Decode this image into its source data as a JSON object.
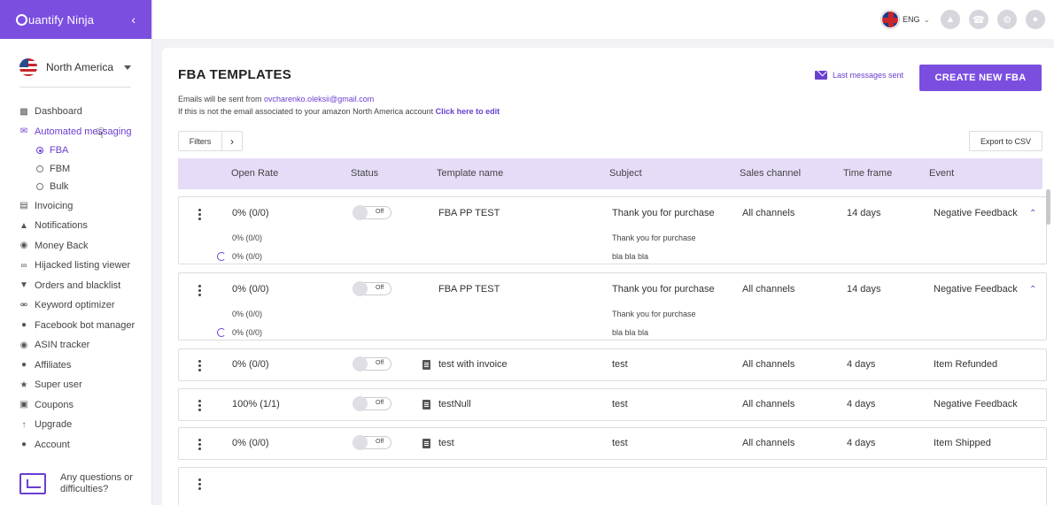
{
  "app": {
    "logo": "uantify Ninja"
  },
  "sidebar": {
    "region": "North America",
    "items": [
      {
        "label": "Dashboard",
        "icon": "bar-chart-icon"
      },
      {
        "label": "Automated messaging",
        "icon": "envelope-icon"
      },
      {
        "label": "Invoicing",
        "icon": "invoice-icon"
      },
      {
        "label": "Notifications",
        "icon": "bell-icon"
      },
      {
        "label": "Money Back",
        "icon": "dollar-icon"
      },
      {
        "label": "Hijacked listing viewer",
        "icon": "glasses-icon"
      },
      {
        "label": "Orders and blacklist",
        "icon": "cart-icon"
      },
      {
        "label": "Keyword optimizer",
        "icon": "key-icon"
      },
      {
        "label": "Facebook bot manager",
        "icon": "chat-icon"
      },
      {
        "label": "ASIN tracker",
        "icon": "tracker-icon"
      },
      {
        "label": "Affiliates",
        "icon": "users-icon"
      },
      {
        "label": "Super user",
        "icon": "star-icon"
      },
      {
        "label": "Coupons",
        "icon": "ticket-icon"
      },
      {
        "label": "Upgrade",
        "icon": "arrow-up-icon"
      },
      {
        "label": "Account",
        "icon": "person-icon"
      }
    ],
    "subitems": [
      {
        "label": "FBA"
      },
      {
        "label": "FBM"
      },
      {
        "label": "Bulk"
      }
    ],
    "help": "Any questions or difficulties?"
  },
  "topbar": {
    "lang": "ENG"
  },
  "page": {
    "title": "FBA TEMPLATES",
    "last_messages": "Last messages sent",
    "create_button": "CREATE NEW FBA",
    "email_prefix": "Emails will be sent from ",
    "email": "ovcharenko.oleksii@gmail.com",
    "email_note": "If this is not the email associated to your amazon North America account ",
    "email_link": "Click here to edit",
    "filters": "Filters",
    "export": "Export to CSV"
  },
  "table": {
    "headers": {
      "open_rate": "Open Rate",
      "status": "Status",
      "template_name": "Template name",
      "subject": "Subject",
      "sales_channel": "Sales channel",
      "time_frame": "Time frame",
      "event": "Event"
    },
    "rows": [
      {
        "open_rate": "0% (0/0)",
        "status": "Off",
        "name": "FBA PP TEST",
        "subject": "Thank you for purchase",
        "channel": "All channels",
        "time": "14 days",
        "event": "Negative Feedback",
        "sub1_rate": "0% (0/0)",
        "sub1_subject": "Thank you for purchase",
        "sub2_rate": "0% (0/0)",
        "sub2_subject": "bla bla bla"
      },
      {
        "open_rate": "0% (0/0)",
        "status": "Off",
        "name": "FBA PP TEST",
        "subject": "Thank you for purchase",
        "channel": "All channels",
        "time": "14 days",
        "event": "Negative Feedback",
        "sub1_rate": "0% (0/0)",
        "sub1_subject": "Thank you for purchase",
        "sub2_rate": "0% (0/0)",
        "sub2_subject": "bla bla bla"
      },
      {
        "open_rate": "0% (0/0)",
        "status": "Off",
        "name": "test with invoice",
        "subject": "test",
        "channel": "All channels",
        "time": "4 days",
        "event": "Item Refunded"
      },
      {
        "open_rate": "100% (1/1)",
        "status": "Off",
        "name": "testNull",
        "subject": "test",
        "channel": "All channels",
        "time": "4 days",
        "event": "Negative Feedback"
      },
      {
        "open_rate": "0% (0/0)",
        "status": "Off",
        "name": "test",
        "subject": "test",
        "channel": "All channels",
        "time": "4 days",
        "event": "Item Shipped"
      }
    ]
  }
}
